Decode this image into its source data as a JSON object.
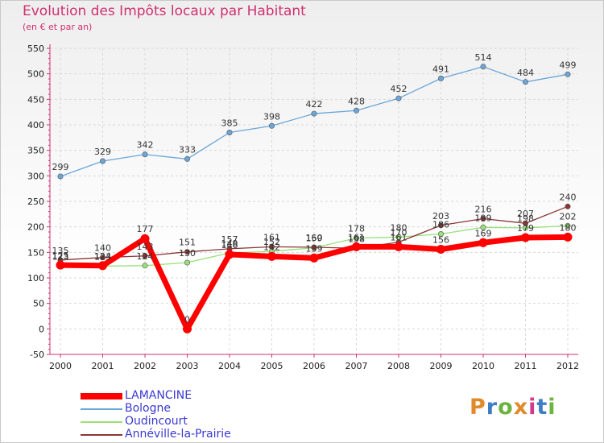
{
  "title": "Evolution des Impôts locaux par Habitant",
  "subtitle": "(en € et par an)",
  "logo": {
    "text": "Proxiti",
    "colors": [
      "#e08a2c",
      "#3d7dc8",
      "#6db33f",
      "#e08a2c",
      "#d03a8c",
      "#3d7dc8",
      "#6db33f"
    ]
  },
  "chart_data": {
    "type": "line",
    "title": "Evolution des Impôts locaux par Habitant",
    "ylabel": "(en € et par an)",
    "xlabel": "",
    "categories": [
      "2000",
      "2001",
      "2002",
      "2003",
      "2004",
      "2005",
      "2006",
      "2007",
      "2008",
      "2009",
      "2010",
      "2011",
      "2012"
    ],
    "ylim": [
      -50,
      550
    ],
    "yticks": [
      -50,
      0,
      50,
      100,
      150,
      200,
      250,
      300,
      350,
      400,
      450,
      500,
      550
    ],
    "grid": true,
    "legend": "bottom-left",
    "series": [
      {
        "name": "LAMANCINE",
        "color": "#ff0000",
        "width": 7,
        "marker": 5,
        "values": [
          125,
          124,
          177,
          0,
          146,
          142,
          139,
          161,
          161,
          156,
          169,
          179,
          180
        ],
        "labels": [
          "125",
          "124",
          "177",
          "0",
          "146",
          "142",
          "139",
          "161",
          "161",
          "156",
          "169",
          "179",
          "180"
        ]
      },
      {
        "name": "Bologne",
        "color": "#6aa6d8",
        "width": 1.3,
        "marker": 3.2,
        "values": [
          299,
          329,
          342,
          333,
          385,
          398,
          422,
          428,
          452,
          491,
          514,
          484,
          499
        ],
        "labels": [
          "299",
          "329",
          "342",
          "333",
          "385",
          "398",
          "422",
          "428",
          "452",
          "491",
          "514",
          "484",
          "499"
        ]
      },
      {
        "name": "Oudincourt",
        "color": "#99e07a",
        "width": 1.3,
        "marker": 3.2,
        "values": [
          123,
          123,
          124,
          130,
          149,
          152,
          159,
          178,
          180,
          186,
          199,
          198,
          202
        ],
        "labels": [
          "123",
          "123",
          "124",
          "130",
          "149",
          "152",
          "159",
          "178",
          "180",
          "186",
          "199",
          "198",
          "202"
        ]
      },
      {
        "name": "Annéville-la-Prairie",
        "color": "#8b3535",
        "width": 1.3,
        "marker": 3.2,
        "values": [
          135,
          140,
          143,
          151,
          157,
          161,
          160,
          158,
          170,
          203,
          216,
          207,
          240
        ],
        "labels": [
          "135",
          "140",
          "143",
          "151",
          "157",
          "161",
          "160",
          "158",
          "170",
          "203",
          "216",
          "207",
          "240"
        ]
      }
    ]
  }
}
